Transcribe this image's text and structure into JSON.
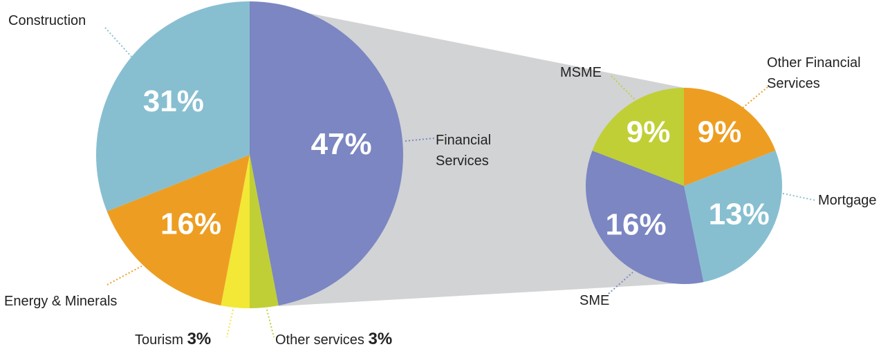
{
  "chart_data": [
    {
      "type": "pie",
      "categories": [
        "Financial Services",
        "Other services",
        "Tourism",
        "Energy & Minerals",
        "Construction"
      ],
      "values": [
        47,
        3,
        3,
        16,
        31
      ],
      "value_labels": [
        "47%",
        "3%",
        "3%",
        "16%",
        "31%"
      ],
      "colors": [
        "#7b86c2",
        "#c0cf35",
        "#f2e835",
        "#ed9e22",
        "#87bfd1"
      ]
    },
    {
      "type": "pie",
      "categories": [
        "Other Financial Services",
        "Mortgage",
        "SME",
        "MSME"
      ],
      "values": [
        9,
        13,
        16,
        9
      ],
      "value_labels": [
        "9%",
        "13%",
        "16%",
        "9%"
      ],
      "colors": [
        "#ed9e22",
        "#87bfd1",
        "#7b86c2",
        "#c0cf35"
      ]
    }
  ]
}
